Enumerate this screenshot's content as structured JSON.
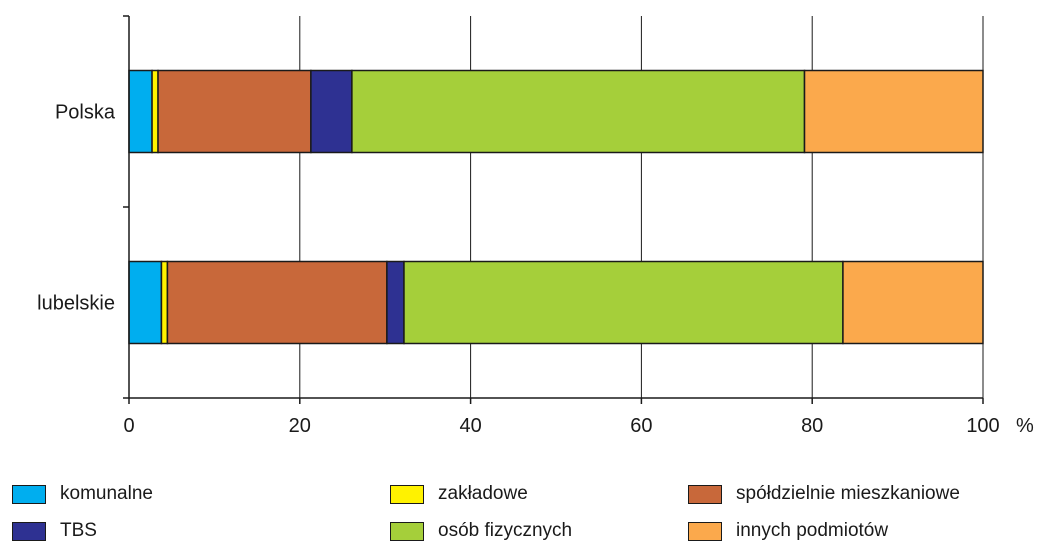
{
  "chart_data": {
    "type": "bar",
    "orientation": "horizontal",
    "stacked": true,
    "categories": [
      "Polska",
      "lubelskie"
    ],
    "series": [
      {
        "name": "komunalne",
        "color": "#00AEEF",
        "values": [
          2.7,
          3.8
        ]
      },
      {
        "name": "zakładowe",
        "color": "#FFF200",
        "values": [
          0.7,
          0.7
        ]
      },
      {
        "name": "spółdzielnie mieszkaniowe",
        "color": "#C8683A",
        "values": [
          17.9,
          25.7
        ]
      },
      {
        "name": "TBS",
        "color": "#2E3192",
        "values": [
          4.8,
          2.0
        ]
      },
      {
        "name": "osób fizycznych",
        "color": "#A5CF3A",
        "values": [
          53.0,
          51.4
        ]
      },
      {
        "name": "innych podmiotów",
        "color": "#FBA94C",
        "values": [
          20.9,
          16.4
        ]
      }
    ],
    "xlim": [
      0,
      100
    ],
    "xticks": [
      0,
      20,
      40,
      60,
      80,
      100
    ],
    "tick_labels": [
      "0",
      "20",
      "40",
      "60",
      "80",
      "100"
    ],
    "unit": "%",
    "grid": "vertical",
    "legend": "bottom"
  }
}
